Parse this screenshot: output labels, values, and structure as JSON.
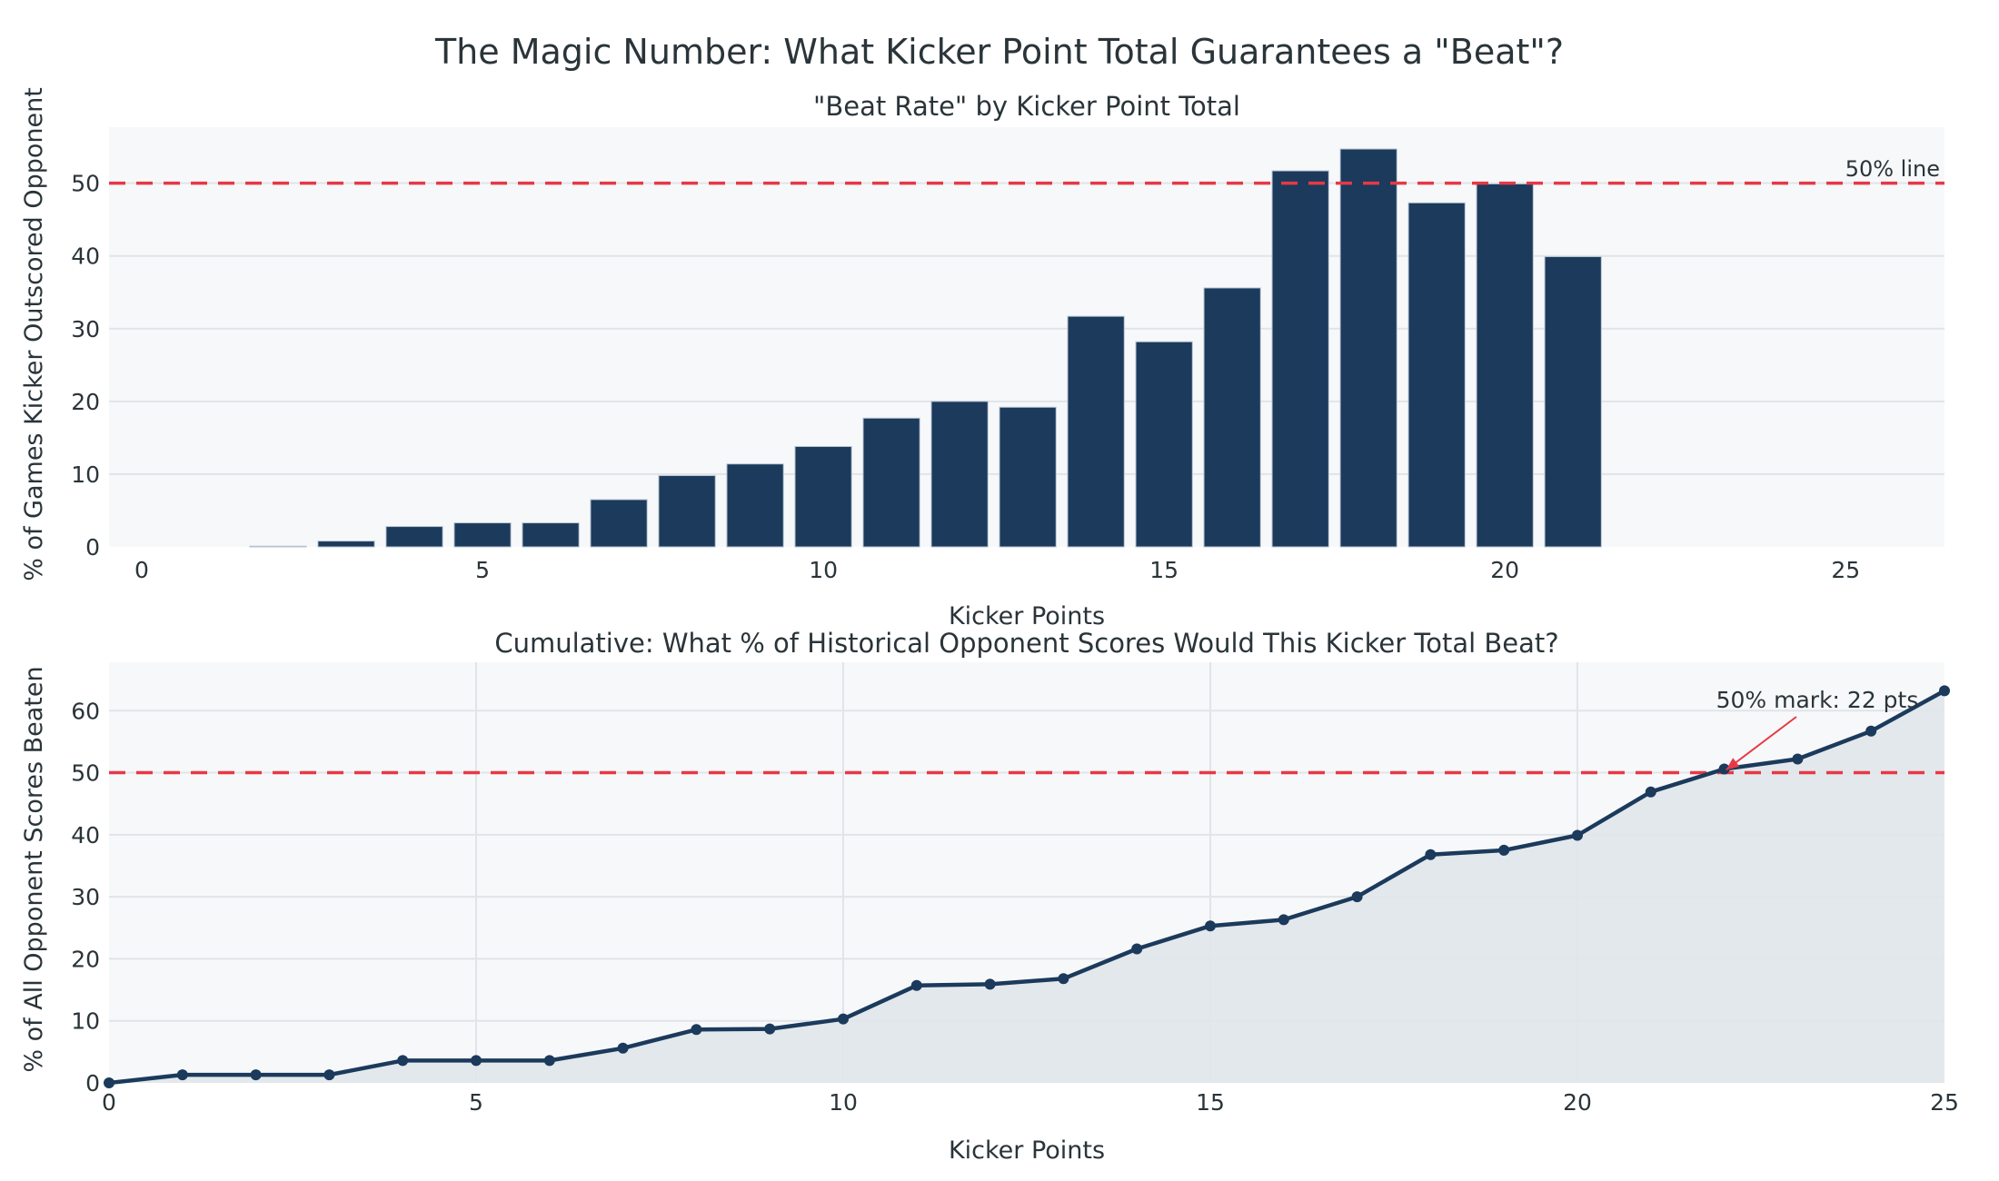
{
  "figure": {
    "title": "The Magic Number: What Kicker Point Total Guarantees a \"Beat\"?",
    "background": "#ffffff",
    "plot_background": "#f7f8fa",
    "grid_color": "#e1e4e8",
    "primary_color": "#1b3a5c",
    "reference_color": "#e63946",
    "fill_color": "#e0e5ea"
  },
  "chart_data": [
    {
      "type": "bar",
      "title": "\"Beat Rate\" by Kicker Point Total",
      "xlabel": "Kicker Points",
      "ylabel": "% of Games Kicker Outscored Opponent",
      "categories": [
        0,
        1,
        2,
        3,
        4,
        5,
        6,
        7,
        8,
        9,
        10,
        11,
        12,
        13,
        14,
        15,
        16,
        17,
        18,
        19,
        20,
        21
      ],
      "values": [
        0,
        0,
        0.1,
        0.8,
        2.8,
        3.3,
        3.3,
        6.5,
        9.8,
        11.4,
        13.8,
        17.7,
        20.0,
        19.2,
        31.7,
        28.2,
        35.6,
        51.7,
        54.7,
        47.3,
        49.9,
        39.9
      ],
      "xlim": [
        -0.48,
        26.45
      ],
      "ylim": [
        0,
        57.7
      ],
      "xticks": [
        0,
        5,
        10,
        15,
        20,
        25
      ],
      "yticks": [
        0,
        10,
        20,
        30,
        40,
        50
      ],
      "grid": {
        "x": false,
        "y": true
      },
      "reference_line": {
        "y": 50,
        "style": "dashed",
        "label": "50% line"
      }
    },
    {
      "type": "area",
      "title": "Cumulative: What % of Historical Opponent Scores Would This Kicker Total Beat?",
      "xlabel": "Kicker Points",
      "ylabel": "% of All Opponent Scores Beaten",
      "x": [
        0,
        1,
        2,
        3,
        4,
        5,
        6,
        7,
        8,
        9,
        10,
        11,
        12,
        13,
        14,
        15,
        16,
        17,
        18,
        19,
        20,
        21,
        22,
        23,
        24,
        25
      ],
      "values": [
        0,
        1.3,
        1.3,
        1.3,
        3.6,
        3.6,
        3.6,
        5.6,
        8.6,
        8.7,
        10.3,
        15.7,
        15.9,
        16.8,
        21.6,
        25.3,
        26.3,
        30.0,
        36.8,
        37.5,
        39.9,
        46.9,
        50.6,
        52.2,
        56.7,
        63.2
      ],
      "xlim": [
        0,
        25
      ],
      "ylim": [
        0,
        67.8
      ],
      "xticks": [
        0,
        5,
        10,
        15,
        20,
        25
      ],
      "yticks": [
        0,
        10,
        20,
        30,
        40,
        50,
        60
      ],
      "grid": {
        "x": true,
        "y": true
      },
      "markers": true,
      "reference_line": {
        "y": 50,
        "style": "dashed"
      },
      "annotation": {
        "text": "50% mark: 22 pts",
        "x": 22,
        "y": 50.6
      }
    }
  ]
}
